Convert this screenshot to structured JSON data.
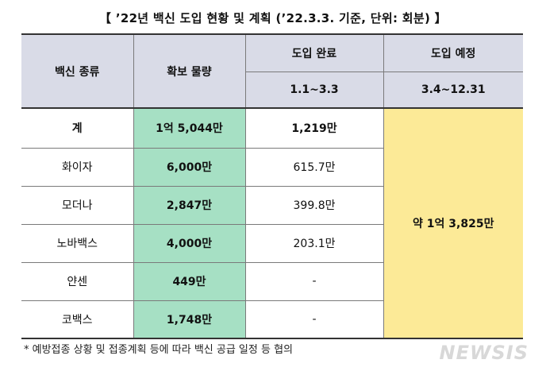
{
  "title": "【 ’22년 백신 도입 현황 및 계획 (’22.3.3. 기준, 단위: 회분) 】",
  "header": {
    "vaccine_type": "백신 종류",
    "secured": "확보 물량",
    "completed": "도입 완료",
    "completed_period": "1.1~3.3",
    "planned": "도입 예정",
    "planned_period": "3.4~12.31"
  },
  "total": {
    "name": "계",
    "secured": "1억 5,044만",
    "completed": "1,219만"
  },
  "planned_total": "약 1억 3,825만",
  "rows": [
    {
      "name": "화이자",
      "secured": "6,000만",
      "completed": "615.7만"
    },
    {
      "name": "모더나",
      "secured": "2,847만",
      "completed": "399.8만"
    },
    {
      "name": "노바백스",
      "secured": "4,000만",
      "completed": "203.1만"
    },
    {
      "name": "얀센",
      "secured": "449만",
      "completed": "-"
    },
    {
      "name": "코백스",
      "secured": "1,748만",
      "completed": "-"
    }
  ],
  "footnote": "* 예방접종 상황 및 접종계획 등에 따라 백신 공급 일정 등 협의",
  "watermark": "NEWSIS"
}
